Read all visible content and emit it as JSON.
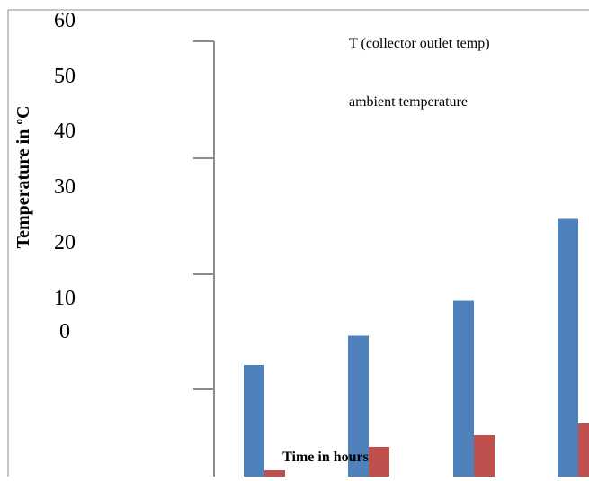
{
  "chart_data": {
    "type": "bar",
    "categories": [
      "",
      "",
      "",
      ""
    ],
    "series": [
      {
        "name": "T (collector outlet temp)",
        "color": "#4f81bd",
        "values": [
          24,
          29,
          35,
          49
        ]
      },
      {
        "name": "ambient temperature",
        "color": "#c0504d",
        "values": [
          6,
          10,
          12,
          14
        ]
      }
    ],
    "ylabel": "Temperature in ºC",
    "xlabel": "Time in hours",
    "y_tick_labels": [
      "60",
      "50",
      "40",
      "30",
      "20",
      "10",
      "0"
    ],
    "ylim": [
      0,
      60
    ],
    "grid": false,
    "legend": "top-right"
  }
}
